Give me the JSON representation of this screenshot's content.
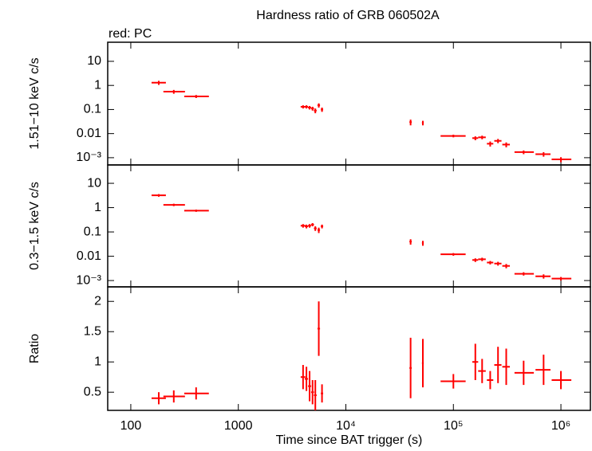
{
  "chart_data": [
    {
      "type": "scatter",
      "title": "Hardness ratio of GRB 060502A",
      "y_label": "1.51−10 keV c/s",
      "log_x": true,
      "log_y": true,
      "xlim": [
        61,
        1880000
      ],
      "ylim": [
        0.0005,
        62
      ],
      "yticks": [
        10,
        1,
        0.1,
        0.01,
        {
          "value": 0.001,
          "label": "10⁻³"
        }
      ],
      "series": [
        {
          "name": "red: PC",
          "color": "#ff0000",
          "x": [
            182,
            251,
            405,
            4000,
            4300,
            4600,
            4900,
            5200,
            5600,
            6000,
            40000,
            52000,
            100000,
            160000,
            185000,
            220000,
            260000,
            310000,
            450000,
            690000,
            1000000
          ],
          "x_low": [
            156,
            201,
            314,
            3800,
            4150,
            4450,
            4750,
            5050,
            5450,
            5850,
            39000,
            51000,
            76000,
            150000,
            170000,
            205000,
            240000,
            285000,
            370000,
            580000,
            820000
          ],
          "x_high": [
            212,
            319,
            532,
            4200,
            4450,
            4750,
            5050,
            5350,
            5750,
            6150,
            41000,
            53000,
            130000,
            170000,
            200000,
            235000,
            280000,
            335000,
            560000,
            800000,
            1250000
          ],
          "values": [
            1.3,
            0.55,
            0.35,
            0.13,
            0.13,
            0.12,
            0.11,
            0.09,
            0.15,
            0.1,
            0.03,
            0.028,
            0.008,
            0.0065,
            0.007,
            0.0038,
            0.005,
            0.0035,
            0.0017,
            0.0014,
            0.00085
          ],
          "errors": [
            0.25,
            0.1,
            0.05,
            0.02,
            0.02,
            0.02,
            0.02,
            0.02,
            0.03,
            0.02,
            0.008,
            0.006,
            0.001,
            0.0012,
            0.0012,
            0.0009,
            0.001,
            0.0008,
            0.0003,
            0.0003,
            0.0002
          ]
        }
      ]
    },
    {
      "type": "scatter",
      "y_label": "0.3−1.5 keV c/s",
      "log_x": true,
      "log_y": true,
      "xlim": [
        61,
        1880000
      ],
      "ylim": [
        0.00055,
        57
      ],
      "yticks": [
        10,
        1,
        0.1,
        0.01,
        {
          "value": 0.001,
          "label": "10⁻³"
        }
      ],
      "series": [
        {
          "color": "#ff0000",
          "x": [
            182,
            251,
            405,
            4000,
            4300,
            4600,
            4900,
            5200,
            5600,
            6000,
            40000,
            52000,
            100000,
            160000,
            185000,
            220000,
            260000,
            310000,
            450000,
            690000,
            1000000
          ],
          "x_low": [
            156,
            201,
            314,
            3800,
            4150,
            4450,
            4750,
            5050,
            5450,
            5850,
            39000,
            51000,
            76000,
            150000,
            170000,
            205000,
            240000,
            285000,
            370000,
            580000,
            820000
          ],
          "x_high": [
            212,
            319,
            532,
            4200,
            4450,
            4750,
            5050,
            5350,
            5750,
            6150,
            41000,
            53000,
            130000,
            170000,
            200000,
            235000,
            280000,
            335000,
            560000,
            800000,
            1250000
          ],
          "values": [
            3.2,
            1.3,
            0.75,
            0.18,
            0.17,
            0.18,
            0.2,
            0.14,
            0.12,
            0.17,
            0.04,
            0.035,
            0.012,
            0.007,
            0.0075,
            0.0055,
            0.005,
            0.004,
            0.0019,
            0.0015,
            0.0012
          ],
          "errors": [
            0.4,
            0.15,
            0.08,
            0.03,
            0.03,
            0.03,
            0.03,
            0.03,
            0.03,
            0.03,
            0.01,
            0.008,
            0.0015,
            0.0012,
            0.0012,
            0.0009,
            0.0009,
            0.0008,
            0.0003,
            0.0003,
            0.0002
          ]
        }
      ]
    },
    {
      "type": "scatter",
      "y_label": "Ratio",
      "x_label": "Time since BAT trigger (s)",
      "log_x": true,
      "log_y": false,
      "xlim": [
        61,
        1880000
      ],
      "ylim": [
        0.2,
        2.24
      ],
      "xticks": [
        100,
        1000,
        {
          "value": 10000,
          "label": "10⁴"
        },
        {
          "value": 100000,
          "label": "10⁵"
        },
        {
          "value": 1000000,
          "label": "10⁶"
        }
      ],
      "yticks": [
        2,
        1.5,
        1,
        0.5
      ],
      "series": [
        {
          "color": "#ff0000",
          "x": [
            182,
            251,
            405,
            4000,
            4300,
            4600,
            4900,
            5200,
            5600,
            6000,
            40000,
            52000,
            100000,
            160000,
            185000,
            220000,
            260000,
            310000,
            450000,
            690000,
            1000000
          ],
          "x_low": [
            156,
            201,
            314,
            3800,
            4150,
            4450,
            4750,
            5050,
            5450,
            5850,
            39000,
            51000,
            76000,
            150000,
            170000,
            205000,
            240000,
            285000,
            370000,
            580000,
            820000
          ],
          "x_high": [
            212,
            319,
            532,
            4200,
            4450,
            4750,
            5050,
            5350,
            5750,
            6150,
            41000,
            53000,
            130000,
            170000,
            200000,
            235000,
            280000,
            335000,
            560000,
            800000,
            1250000
          ],
          "values": [
            0.4,
            0.43,
            0.48,
            0.75,
            0.72,
            0.6,
            0.5,
            0.45,
            1.55,
            0.48,
            0.9,
            0.98,
            0.68,
            1.0,
            0.85,
            0.7,
            0.95,
            0.92,
            0.82,
            0.87,
            0.7
          ],
          "errors": [
            0.1,
            0.1,
            0.1,
            0.2,
            0.2,
            0.25,
            0.2,
            0.25,
            0.45,
            0.15,
            0.5,
            0.4,
            0.12,
            0.3,
            0.2,
            0.15,
            0.3,
            0.3,
            0.2,
            0.25,
            0.15
          ]
        }
      ]
    }
  ]
}
